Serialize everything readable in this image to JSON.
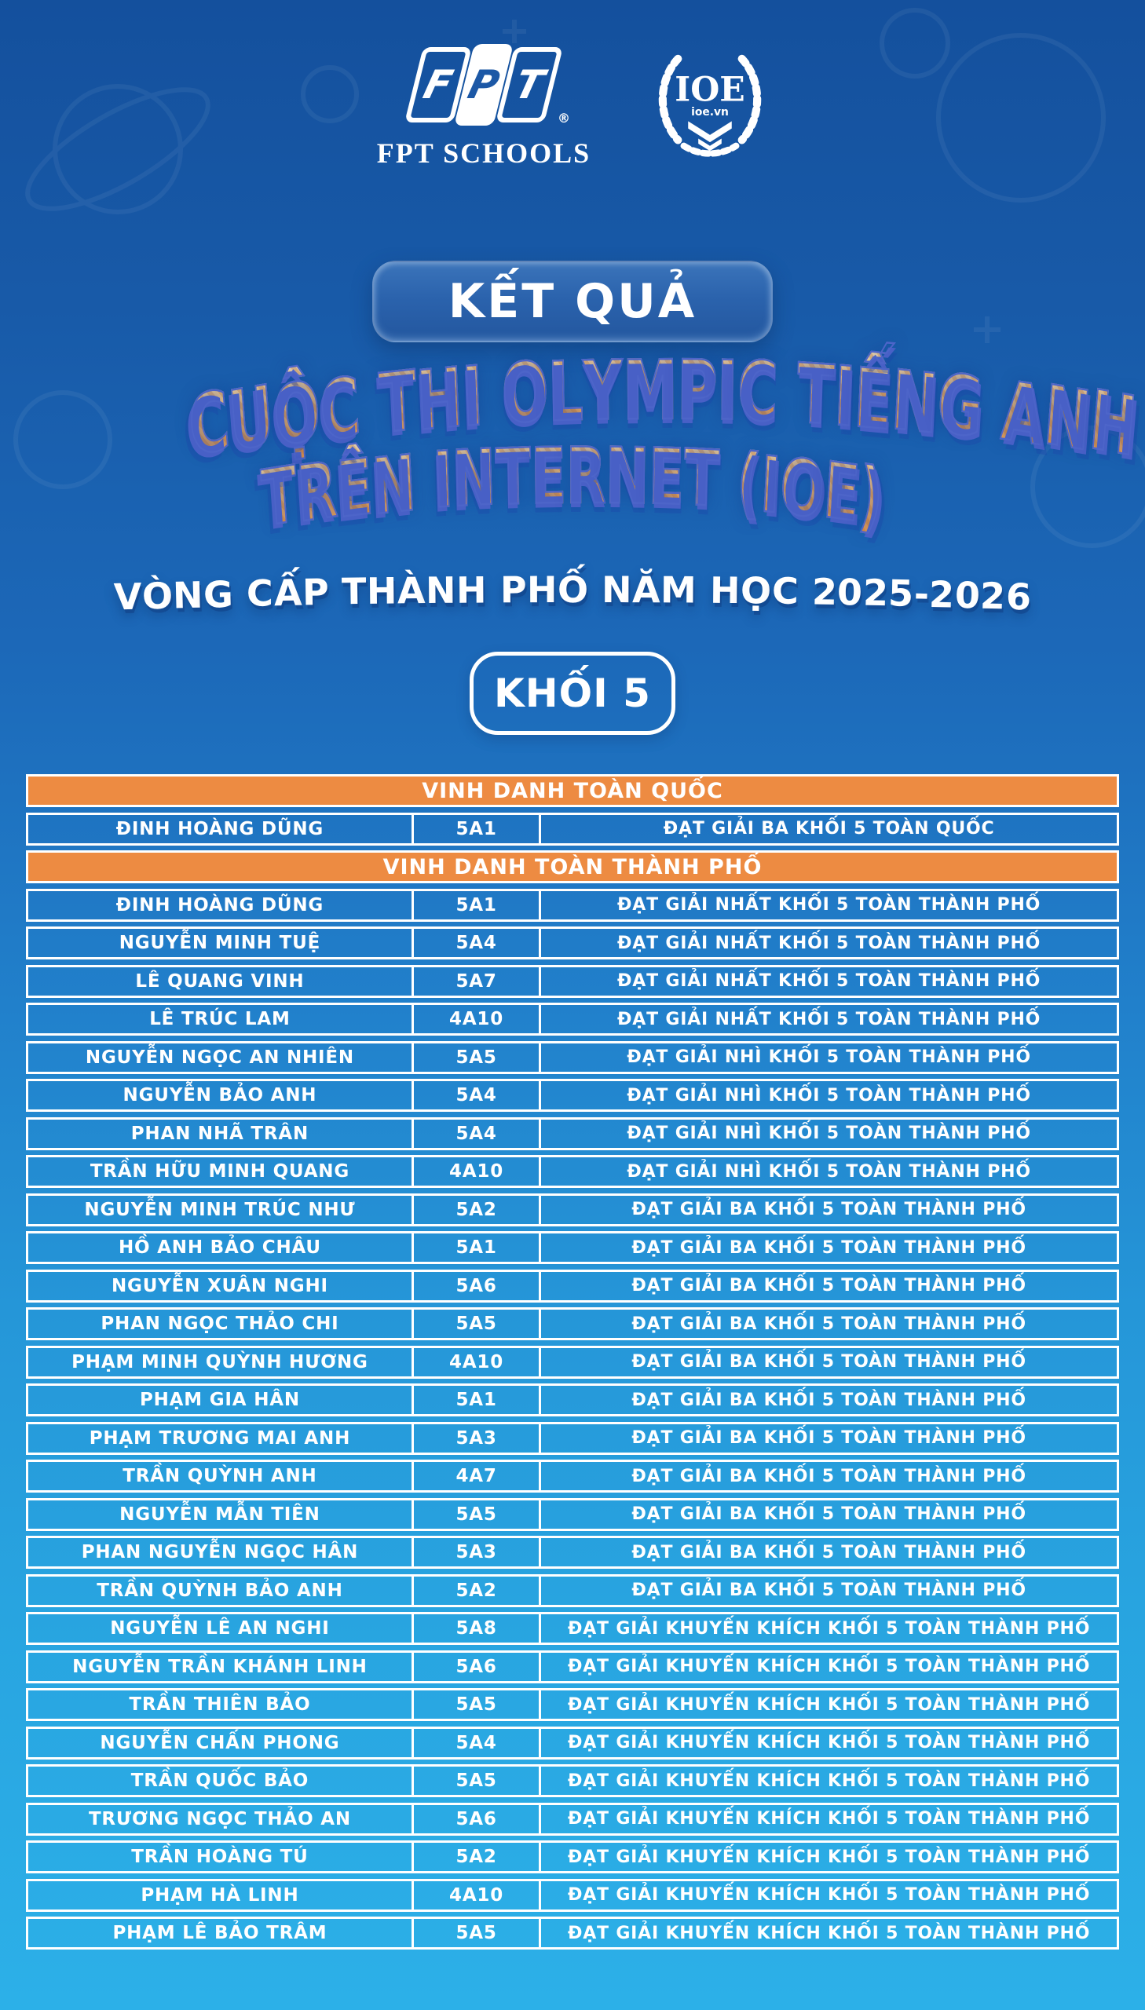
{
  "colors": {
    "bg_top": "#14509d",
    "bg_bottom": "#2cb0e8",
    "accent_orange": "#ED8B42",
    "title_fill_light": "#ffe3b0",
    "title_fill_dark": "#f2973f",
    "title_outline": "#4d65c9",
    "title_extrude": "#4860c6",
    "text_white": "#ffffff",
    "fpt_blue": "#1c58a6"
  },
  "header": {
    "fpt": {
      "letters": [
        "F",
        "P",
        "T"
      ],
      "registered": "®",
      "label": "FPT SCHOOLS"
    },
    "ioe": {
      "name": "IOE",
      "domain": "ioe.vn"
    }
  },
  "banner": {
    "result_label": "KẾT QUẢ",
    "title_line_1": "CUỘC THI OLYMPIC TIẾNG ANH",
    "title_line_2": "TRÊN INTERNET (IOE)",
    "subtitle": "VÒNG CẤP THÀNH PHỐ NĂM HỌC 2025-2026",
    "grade_badge": "KHỐI 5"
  },
  "table": {
    "rows": [
      {
        "type": "header",
        "label": "VINH DANH TOÀN QUỐC"
      },
      {
        "type": "data",
        "name": "ĐINH HOÀNG DŨNG",
        "class": "5A1",
        "award": "ĐẠT GIẢI BA KHỐI 5 TOÀN QUỐC"
      },
      {
        "type": "header",
        "label": "VINH DANH TOÀN THÀNH PHỐ"
      },
      {
        "type": "data",
        "name": "ĐINH HOÀNG DŨNG",
        "class": "5A1",
        "award": "ĐẠT GIẢI NHẤT KHỐI 5 TOÀN THÀNH PHỐ"
      },
      {
        "type": "data",
        "name": "NGUYỄN MINH TUỆ",
        "class": "5A4",
        "award": "ĐẠT GIẢI NHẤT KHỐI 5 TOÀN THÀNH PHỐ"
      },
      {
        "type": "data",
        "name": "LÊ QUANG VINH",
        "class": "5A7",
        "award": "ĐẠT GIẢI NHẤT KHỐI 5 TOÀN THÀNH PHỐ"
      },
      {
        "type": "data",
        "name": "LÊ TRÚC LAM",
        "class": "4A10",
        "award": "ĐẠT GIẢI NHẤT KHỐI 5 TOÀN THÀNH PHỐ"
      },
      {
        "type": "data",
        "name": "NGUYỄN NGỌC AN NHIÊN",
        "class": "5A5",
        "award": "ĐẠT GIẢI NHÌ KHỐI 5 TOÀN THÀNH PHỐ"
      },
      {
        "type": "data",
        "name": "NGUYỄN BẢO ANH",
        "class": "5A4",
        "award": "ĐẠT GIẢI NHÌ KHỐI 5 TOÀN THÀNH PHỐ"
      },
      {
        "type": "data",
        "name": "PHAN NHÃ TRÂN",
        "class": "5A4",
        "award": "ĐẠT GIẢI NHÌ KHỐI 5 TOÀN THÀNH PHỐ"
      },
      {
        "type": "data",
        "name": "TRẦN HỮU MINH QUANG",
        "class": "4A10",
        "award": "ĐẠT GIẢI NHÌ KHỐI 5 TOÀN THÀNH PHỐ"
      },
      {
        "type": "data",
        "name": "NGUYỄN MINH TRÚC NHƯ",
        "class": "5A2",
        "award": "ĐẠT GIẢI BA KHỐI 5 TOÀN THÀNH PHỐ"
      },
      {
        "type": "data",
        "name": "HỒ ANH BẢO CHÂU",
        "class": "5A1",
        "award": "ĐẠT GIẢI BA KHỐI 5 TOÀN THÀNH PHỐ"
      },
      {
        "type": "data",
        "name": "NGUYỄN XUÂN NGHI",
        "class": "5A6",
        "award": "ĐẠT GIẢI BA KHỐI 5 TOÀN THÀNH PHỐ"
      },
      {
        "type": "data",
        "name": "PHAN NGỌC THẢO CHI",
        "class": "5A5",
        "award": "ĐẠT GIẢI BA KHỐI 5 TOÀN THÀNH PHỐ"
      },
      {
        "type": "data",
        "name": "PHẠM MINH QUỲNH HƯƠNG",
        "class": "4A10",
        "award": "ĐẠT GIẢI BA KHỐI 5 TOÀN THÀNH PHỐ"
      },
      {
        "type": "data",
        "name": "PHẠM GIA HÂN",
        "class": "5A1",
        "award": "ĐẠT GIẢI BA KHỐI 5 TOÀN THÀNH PHỐ"
      },
      {
        "type": "data",
        "name": "PHẠM TRƯƠNG MAI ANH",
        "class": "5A3",
        "award": "ĐẠT GIẢI BA KHỐI 5 TOÀN THÀNH PHỐ"
      },
      {
        "type": "data",
        "name": "TRẦN QUỲNH ANH",
        "class": "4A7",
        "award": "ĐẠT GIẢI BA KHỐI 5 TOÀN THÀNH PHỐ"
      },
      {
        "type": "data",
        "name": "NGUYỄN MẪN TIÊN",
        "class": "5A5",
        "award": "ĐẠT GIẢI BA KHỐI 5 TOÀN THÀNH PHỐ"
      },
      {
        "type": "data",
        "name": "PHAN NGUYỄN NGỌC HÂN",
        "class": "5A3",
        "award": "ĐẠT GIẢI BA KHỐI 5 TOÀN THÀNH PHỐ"
      },
      {
        "type": "data",
        "name": "TRẦN QUỲNH BẢO ANH",
        "class": "5A2",
        "award": "ĐẠT GIẢI BA KHỐI 5 TOÀN THÀNH PHỐ"
      },
      {
        "type": "data",
        "name": "NGUYỄN LÊ AN NGHI",
        "class": "5A8",
        "award": "ĐẠT GIẢI KHUYẾN KHÍCH KHỐI 5 TOÀN THÀNH PHỐ"
      },
      {
        "type": "data",
        "name": "NGUYỄN TRẦN KHÁNH LINH",
        "class": "5A6",
        "award": "ĐẠT GIẢI KHUYẾN KHÍCH KHỐI 5 TOÀN THÀNH PHỐ"
      },
      {
        "type": "data",
        "name": "TRẦN THIÊN BẢO",
        "class": "5A5",
        "award": "ĐẠT GIẢI KHUYẾN KHÍCH KHỐI 5 TOÀN THÀNH PHỐ"
      },
      {
        "type": "data",
        "name": "NGUYỄN CHẤN PHONG",
        "class": "5A4",
        "award": "ĐẠT GIẢI KHUYẾN KHÍCH KHỐI 5 TOÀN THÀNH PHỐ"
      },
      {
        "type": "data",
        "name": "TRẦN QUỐC BẢO",
        "class": "5A5",
        "award": "ĐẠT GIẢI KHUYẾN KHÍCH KHỐI 5 TOÀN THÀNH PHỐ"
      },
      {
        "type": "data",
        "name": "TRƯƠNG NGỌC THẢO AN",
        "class": "5A6",
        "award": "ĐẠT GIẢI KHUYẾN KHÍCH KHỐI 5 TOÀN THÀNH PHỐ"
      },
      {
        "type": "data",
        "name": "TRẦN HOÀNG TÚ",
        "class": "5A2",
        "award": "ĐẠT GIẢI KHUYẾN KHÍCH KHỐI 5 TOÀN THÀNH PHỐ"
      },
      {
        "type": "data",
        "name": "PHẠM HÀ LINH",
        "class": "4A10",
        "award": "ĐẠT GIẢI KHUYẾN KHÍCH KHỐI 5 TOÀN THÀNH PHỐ"
      },
      {
        "type": "data",
        "name": "PHẠM LÊ BẢO TRÂM",
        "class": "5A5",
        "award": "ĐẠT GIẢI KHUYẾN KHÍCH KHỐI 5 TOÀN THÀNH PHỐ"
      }
    ]
  }
}
